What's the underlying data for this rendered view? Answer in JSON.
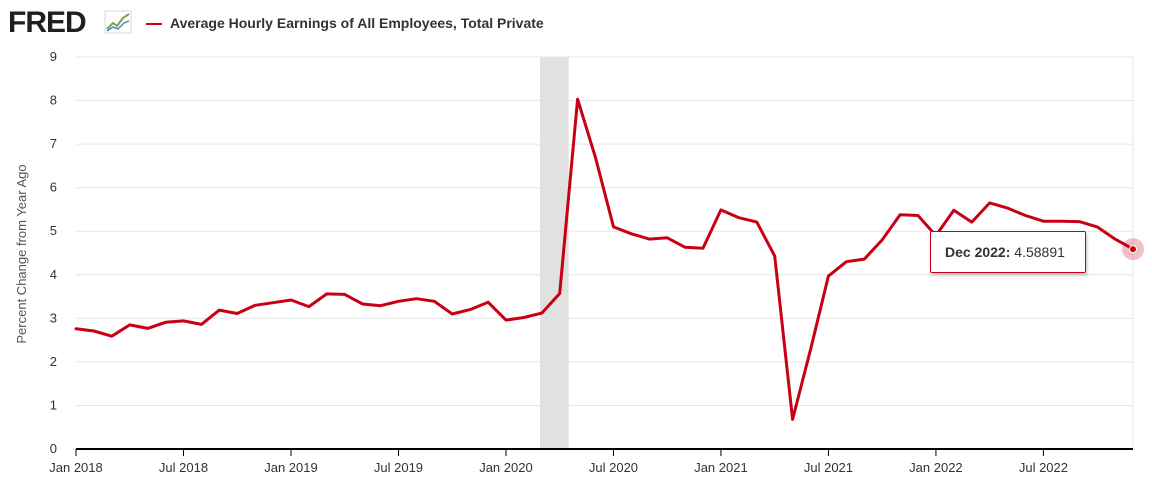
{
  "header": {
    "logo_text": "FRED",
    "logo_icon": "trend-line-icon",
    "series_title": "Average Hourly Earnings of All Employees, Total Private",
    "series_color": "#c80014"
  },
  "tooltip": {
    "date_label": "Dec 2022:",
    "value_label": "4.58891"
  },
  "chart_data": {
    "type": "line",
    "ylabel": "Percent Change from Year Ago",
    "ylim": [
      0,
      9
    ],
    "yticks": [
      "0",
      "1",
      "2",
      "3",
      "4",
      "5",
      "6",
      "7",
      "8",
      "9"
    ],
    "xticks": [
      "Jan 2018",
      "Jul 2018",
      "Jan 2019",
      "Jul 2019",
      "Jan 2020",
      "Jul 2020",
      "Jan 2021",
      "Jul 2021",
      "Jan 2022",
      "Jul 2022"
    ],
    "grid": true,
    "recession_shading": {
      "start": "Feb 2020",
      "end": "Apr 2020",
      "color": "#e1e1e1"
    },
    "series": [
      {
        "name": "Average Hourly Earnings of All Employees, Total Private",
        "color": "#c80014",
        "x": [
          "2018-01",
          "2018-02",
          "2018-03",
          "2018-04",
          "2018-05",
          "2018-06",
          "2018-07",
          "2018-08",
          "2018-09",
          "2018-10",
          "2018-11",
          "2018-12",
          "2019-01",
          "2019-02",
          "2019-03",
          "2019-04",
          "2019-05",
          "2019-06",
          "2019-07",
          "2019-08",
          "2019-09",
          "2019-10",
          "2019-11",
          "2019-12",
          "2020-01",
          "2020-02",
          "2020-03",
          "2020-04",
          "2020-05",
          "2020-06",
          "2020-07",
          "2020-08",
          "2020-09",
          "2020-10",
          "2020-11",
          "2020-12",
          "2021-01",
          "2021-02",
          "2021-03",
          "2021-04",
          "2021-05",
          "2021-06",
          "2021-07",
          "2021-08",
          "2021-09",
          "2021-10",
          "2021-11",
          "2021-12",
          "2022-01",
          "2022-02",
          "2022-03",
          "2022-04",
          "2022-05",
          "2022-06",
          "2022-07",
          "2022-08",
          "2022-09",
          "2022-10",
          "2022-11",
          "2022-12"
        ],
        "values": [
          2.76,
          2.71,
          2.59,
          2.85,
          2.77,
          2.91,
          2.94,
          2.86,
          3.19,
          3.11,
          3.3,
          3.36,
          3.42,
          3.27,
          3.56,
          3.55,
          3.33,
          3.29,
          3.39,
          3.45,
          3.39,
          3.1,
          3.2,
          3.37,
          2.96,
          3.02,
          3.12,
          3.57,
          8.03,
          6.69,
          5.1,
          4.94,
          4.82,
          4.85,
          4.63,
          4.61,
          5.49,
          5.31,
          5.21,
          4.43,
          0.68,
          2.28,
          3.97,
          4.3,
          4.36,
          4.8,
          5.38,
          5.36,
          4.9,
          5.48,
          5.21,
          5.65,
          5.53,
          5.36,
          5.23,
          5.23,
          5.22,
          5.1,
          4.82,
          4.59
        ]
      }
    ]
  }
}
